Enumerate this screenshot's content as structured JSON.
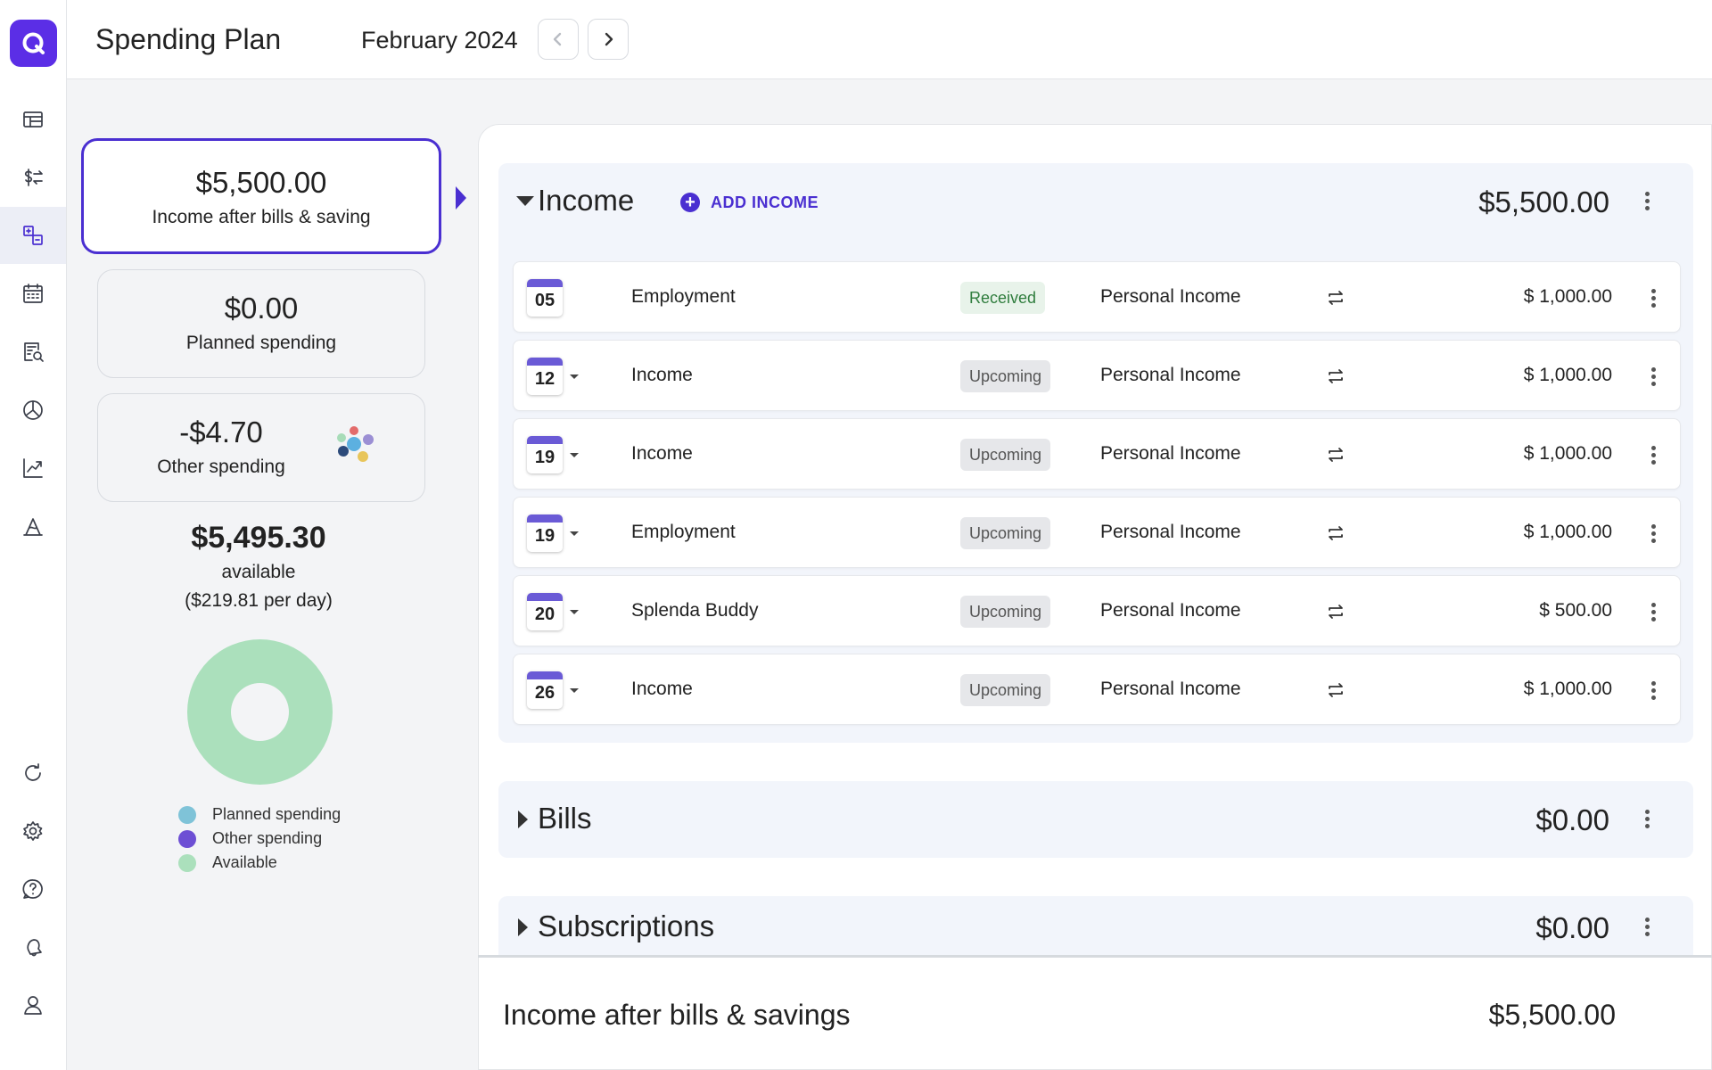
{
  "header": {
    "title": "Spending Plan",
    "month": "February 2024"
  },
  "colors": {
    "accent": "#4a2fd1",
    "donut_available": "#abe0bc",
    "legend_planned": "#7fc3d8",
    "legend_other": "#6d4fd4",
    "legend_available": "#abe0bc"
  },
  "rail": {
    "icons": [
      "logo-icon",
      "dashboard-icon",
      "transactions-icon",
      "spending-plan-icon",
      "calendar-icon",
      "reports-icon",
      "investments-icon",
      "trends-icon",
      "planning-icon",
      "refresh-icon",
      "settings-icon",
      "help-icon",
      "notifications-icon",
      "profile-icon"
    ],
    "active": "spending-plan-icon"
  },
  "summary": {
    "income": {
      "amount": "$5,500.00",
      "label": "Income after bills & saving"
    },
    "planned": {
      "amount": "$0.00",
      "label": "Planned spending"
    },
    "other": {
      "amount": "-$4.70",
      "label": "Other spending"
    },
    "available": {
      "amount": "$5,495.30",
      "label": "available",
      "per_day": "($219.81 per day)"
    }
  },
  "legend": [
    "Planned spending",
    "Other spending",
    "Available"
  ],
  "income": {
    "title": "Income",
    "add_label": "ADD INCOME",
    "total": "$5,500.00",
    "rows": [
      {
        "day": "05",
        "name": "Employment",
        "status": "Received",
        "category": "Personal Income",
        "amount": "$ 1,000.00"
      },
      {
        "day": "12",
        "name": "Income",
        "status": "Upcoming",
        "category": "Personal Income",
        "amount": "$ 1,000.00"
      },
      {
        "day": "19",
        "name": "Income",
        "status": "Upcoming",
        "category": "Personal Income",
        "amount": "$ 1,000.00"
      },
      {
        "day": "19",
        "name": "Employment",
        "status": "Upcoming",
        "category": "Personal Income",
        "amount": "$ 1,000.00"
      },
      {
        "day": "20",
        "name": "Splenda Buddy",
        "status": "Upcoming",
        "category": "Personal Income",
        "amount": "$ 500.00"
      },
      {
        "day": "26",
        "name": "Income",
        "status": "Upcoming",
        "category": "Personal Income",
        "amount": "$ 1,000.00"
      }
    ]
  },
  "bills": {
    "title": "Bills",
    "total": "$0.00"
  },
  "subscriptions": {
    "title": "Subscriptions",
    "total": "$0.00"
  },
  "footer": {
    "label": "Income after bills & savings",
    "total": "$5,500.00"
  }
}
